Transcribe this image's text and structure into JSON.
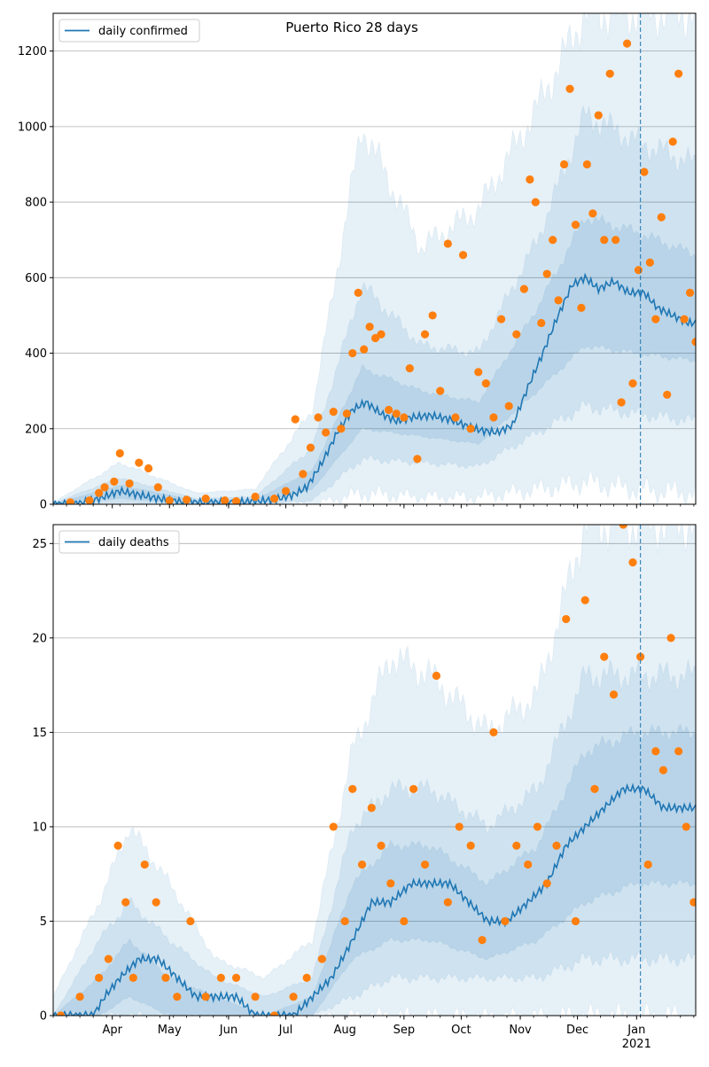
{
  "title": "Puerto Rico 28 days",
  "colors": {
    "line": "#1f77b4",
    "points": "#ff7f0e",
    "band": "#1f77b4",
    "grid": "#b0b0b0"
  },
  "x_axis": {
    "month_labels": [
      {
        "date": "2020-04-01",
        "label": "Apr"
      },
      {
        "date": "2020-05-01",
        "label": "May"
      },
      {
        "date": "2020-06-01",
        "label": "Jun"
      },
      {
        "date": "2020-07-01",
        "label": "Jul"
      },
      {
        "date": "2020-08-01",
        "label": "Aug"
      },
      {
        "date": "2020-09-01",
        "label": "Sep"
      },
      {
        "date": "2020-10-01",
        "label": "Oct"
      },
      {
        "date": "2020-11-01",
        "label": "Nov"
      },
      {
        "date": "2020-12-01",
        "label": "Dec"
      },
      {
        "date": "2021-01-01",
        "label": "Jan"
      }
    ],
    "year_label": "2021",
    "range": [
      "2020-03-01",
      "2021-02-01"
    ]
  },
  "chart_data": [
    {
      "type": "line",
      "panel": "top",
      "title": "Puerto Rico 28 days",
      "legend": {
        "placement": "top-left",
        "entries": [
          "daily confirmed"
        ]
      },
      "vline_date": "2021-01-03",
      "ylim": [
        0,
        1300
      ],
      "yticks": [
        0,
        200,
        400,
        600,
        800,
        1000,
        1200
      ],
      "grid": true,
      "series": [
        {
          "name": "daily confirmed",
          "kind": "line",
          "x": [
            "2020-03-01",
            "2020-03-15",
            "2020-03-25",
            "2020-04-05",
            "2020-04-15",
            "2020-04-25",
            "2020-05-05",
            "2020-05-15",
            "2020-05-25",
            "2020-06-05",
            "2020-06-15",
            "2020-06-25",
            "2020-07-05",
            "2020-07-12",
            "2020-07-20",
            "2020-07-28",
            "2020-08-05",
            "2020-08-12",
            "2020-08-20",
            "2020-08-28",
            "2020-09-05",
            "2020-09-15",
            "2020-09-25",
            "2020-10-05",
            "2020-10-12",
            "2020-10-20",
            "2020-10-28",
            "2020-11-05",
            "2020-11-12",
            "2020-11-20",
            "2020-11-28",
            "2020-12-05",
            "2020-12-12",
            "2020-12-20",
            "2020-12-28",
            "2021-01-05",
            "2021-01-12",
            "2021-01-20",
            "2021-01-28",
            "2021-02-01"
          ],
          "y": [
            0,
            2,
            15,
            35,
            25,
            15,
            8,
            5,
            5,
            6,
            8,
            12,
            25,
            45,
            110,
            190,
            250,
            270,
            240,
            220,
            230,
            235,
            225,
            205,
            195,
            190,
            210,
            310,
            390,
            490,
            580,
            600,
            570,
            590,
            560,
            560,
            520,
            500,
            480,
            480
          ]
        },
        {
          "name": "points",
          "kind": "scatter",
          "x": [
            "2020-03-10",
            "2020-03-20",
            "2020-03-25",
            "2020-03-28",
            "2020-04-02",
            "2020-04-05",
            "2020-04-10",
            "2020-04-15",
            "2020-04-20",
            "2020-04-25",
            "2020-05-01",
            "2020-05-10",
            "2020-05-20",
            "2020-05-30",
            "2020-06-05",
            "2020-06-15",
            "2020-06-25",
            "2020-07-01",
            "2020-07-06",
            "2020-07-10",
            "2020-07-14",
            "2020-07-18",
            "2020-07-22",
            "2020-07-26",
            "2020-07-30",
            "2020-08-02",
            "2020-08-05",
            "2020-08-08",
            "2020-08-11",
            "2020-08-14",
            "2020-08-17",
            "2020-08-20",
            "2020-08-24",
            "2020-08-28",
            "2020-09-01",
            "2020-09-04",
            "2020-09-08",
            "2020-09-12",
            "2020-09-16",
            "2020-09-20",
            "2020-09-24",
            "2020-09-28",
            "2020-10-02",
            "2020-10-06",
            "2020-10-10",
            "2020-10-14",
            "2020-10-18",
            "2020-10-22",
            "2020-10-26",
            "2020-10-30",
            "2020-11-03",
            "2020-11-06",
            "2020-11-09",
            "2020-11-12",
            "2020-11-15",
            "2020-11-18",
            "2020-11-21",
            "2020-11-24",
            "2020-11-27",
            "2020-11-30",
            "2020-12-03",
            "2020-12-06",
            "2020-12-09",
            "2020-12-12",
            "2020-12-15",
            "2020-12-18",
            "2020-12-21",
            "2020-12-24",
            "2020-12-27",
            "2020-12-30",
            "2021-01-02",
            "2021-01-05",
            "2021-01-08",
            "2021-01-11",
            "2021-01-14",
            "2021-01-17",
            "2021-01-20",
            "2021-01-23",
            "2021-01-26",
            "2021-01-29",
            "2021-02-01"
          ],
          "y": [
            5,
            10,
            30,
            45,
            60,
            135,
            55,
            110,
            95,
            45,
            10,
            12,
            15,
            10,
            8,
            20,
            15,
            35,
            225,
            80,
            150,
            230,
            190,
            245,
            200,
            240,
            400,
            560,
            410,
            470,
            440,
            450,
            250,
            240,
            230,
            360,
            120,
            450,
            500,
            300,
            690,
            230,
            660,
            200,
            350,
            320,
            230,
            490,
            260,
            450,
            570,
            860,
            800,
            480,
            610,
            700,
            540,
            900,
            1100,
            740,
            520,
            900,
            770,
            1030,
            700,
            1140,
            700,
            270,
            1220,
            320,
            620,
            880,
            640,
            490,
            760,
            290,
            960,
            1140,
            490,
            560,
            430
          ]
        }
      ],
      "bands": [
        {
          "name": "outer",
          "x": [
            "2020-03-01",
            "2020-04-05",
            "2020-05-15",
            "2020-06-15",
            "2020-07-15",
            "2020-08-10",
            "2020-09-10",
            "2020-10-10",
            "2020-11-10",
            "2020-12-05",
            "2021-01-01",
            "2021-02-01"
          ],
          "lower": [
            0,
            0,
            0,
            0,
            0,
            30,
            20,
            20,
            40,
            60,
            40,
            30
          ],
          "upper": [
            5,
            110,
            30,
            40,
            250,
            1000,
            680,
            780,
            1050,
            1300,
            1300,
            1300
          ]
        },
        {
          "name": "middle",
          "x": [
            "2020-03-01",
            "2020-04-05",
            "2020-05-15",
            "2020-06-15",
            "2020-07-15",
            "2020-08-10",
            "2020-09-10",
            "2020-10-10",
            "2020-11-10",
            "2020-12-05",
            "2021-01-01",
            "2021-02-01"
          ],
          "lower": [
            0,
            5,
            0,
            0,
            10,
            120,
            110,
            100,
            190,
            260,
            240,
            220
          ],
          "upper": [
            3,
            70,
            15,
            20,
            150,
            580,
            420,
            400,
            700,
            1030,
            960,
            900
          ]
        },
        {
          "name": "inner",
          "x": [
            "2020-03-01",
            "2020-04-05",
            "2020-05-15",
            "2020-06-15",
            "2020-07-15",
            "2020-08-10",
            "2020-09-10",
            "2020-10-10",
            "2020-11-10",
            "2020-12-05",
            "2021-01-01",
            "2021-02-01"
          ],
          "lower": [
            0,
            15,
            2,
            2,
            40,
            200,
            180,
            160,
            300,
            420,
            400,
            380
          ],
          "upper": [
            1,
            50,
            10,
            12,
            90,
            360,
            300,
            270,
            520,
            760,
            720,
            660
          ]
        }
      ]
    },
    {
      "type": "line",
      "panel": "bottom",
      "legend": {
        "placement": "top-left",
        "entries": [
          "daily deaths"
        ]
      },
      "vline_date": "2021-01-03",
      "ylim": [
        0,
        26
      ],
      "yticks": [
        0,
        5,
        10,
        15,
        20,
        25
      ],
      "grid": true,
      "series": [
        {
          "name": "daily deaths",
          "kind": "line",
          "x": [
            "2020-03-01",
            "2020-03-22",
            "2020-03-28",
            "2020-04-05",
            "2020-04-15",
            "2020-04-25",
            "2020-05-05",
            "2020-05-15",
            "2020-05-25",
            "2020-06-05",
            "2020-06-15",
            "2020-06-25",
            "2020-07-05",
            "2020-07-15",
            "2020-07-25",
            "2020-08-05",
            "2020-08-15",
            "2020-08-25",
            "2020-09-05",
            "2020-09-15",
            "2020-09-25",
            "2020-10-05",
            "2020-10-15",
            "2020-10-25",
            "2020-11-05",
            "2020-11-15",
            "2020-11-25",
            "2020-12-05",
            "2020-12-15",
            "2020-12-25",
            "2021-01-05",
            "2021-01-15",
            "2021-01-25",
            "2021-02-01"
          ],
          "y": [
            0,
            0,
            1,
            2,
            3,
            3,
            2,
            1,
            1,
            1,
            0,
            0,
            0,
            1,
            2,
            4,
            6,
            6,
            7,
            7,
            7,
            6,
            5,
            5,
            6,
            7,
            9,
            10,
            11,
            12,
            12,
            11,
            11,
            11
          ]
        },
        {
          "name": "points",
          "kind": "scatter",
          "x": [
            "2020-03-05",
            "2020-03-15",
            "2020-03-25",
            "2020-03-30",
            "2020-04-04",
            "2020-04-08",
            "2020-04-12",
            "2020-04-18",
            "2020-04-24",
            "2020-04-29",
            "2020-05-05",
            "2020-05-12",
            "2020-05-20",
            "2020-05-28",
            "2020-06-05",
            "2020-06-15",
            "2020-06-25",
            "2020-07-05",
            "2020-07-12",
            "2020-07-20",
            "2020-07-26",
            "2020-08-01",
            "2020-08-05",
            "2020-08-10",
            "2020-08-15",
            "2020-08-20",
            "2020-08-25",
            "2020-09-01",
            "2020-09-06",
            "2020-09-12",
            "2020-09-18",
            "2020-09-24",
            "2020-09-30",
            "2020-10-06",
            "2020-10-12",
            "2020-10-18",
            "2020-10-24",
            "2020-10-30",
            "2020-11-05",
            "2020-11-10",
            "2020-11-15",
            "2020-11-20",
            "2020-11-25",
            "2020-11-30",
            "2020-12-05",
            "2020-12-10",
            "2020-12-15",
            "2020-12-20",
            "2020-12-25",
            "2020-12-30",
            "2021-01-03",
            "2021-01-07",
            "2021-01-11",
            "2021-01-15",
            "2021-01-19",
            "2021-01-23",
            "2021-01-27",
            "2021-01-31"
          ],
          "y": [
            0,
            1,
            2,
            3,
            9,
            6,
            2,
            8,
            6,
            2,
            1,
            5,
            1,
            2,
            2,
            1,
            0,
            1,
            2,
            3,
            10,
            5,
            12,
            8,
            11,
            9,
            7,
            5,
            12,
            8,
            18,
            6,
            10,
            9,
            4,
            15,
            5,
            9,
            8,
            10,
            7,
            9,
            21,
            5,
            22,
            12,
            19,
            17,
            26,
            24,
            19,
            8,
            14,
            13,
            20,
            14,
            10,
            6
          ]
        }
      ],
      "bands": [
        {
          "name": "outer",
          "x": [
            "2020-03-01",
            "2020-03-25",
            "2020-04-10",
            "2020-05-01",
            "2020-05-25",
            "2020-06-20",
            "2020-07-15",
            "2020-08-05",
            "2020-08-25",
            "2020-09-15",
            "2020-10-15",
            "2020-11-10",
            "2020-12-05",
            "2021-01-01",
            "2021-02-01"
          ],
          "lower": [
            0,
            0,
            0,
            0,
            0,
            0,
            0,
            0,
            0,
            0,
            0,
            0,
            0,
            0,
            0
          ],
          "upper": [
            1,
            6,
            10,
            7,
            3,
            2,
            4,
            14,
            19,
            18,
            15,
            17,
            26,
            26,
            26
          ]
        },
        {
          "name": "middle",
          "x": [
            "2020-03-01",
            "2020-03-25",
            "2020-04-10",
            "2020-05-01",
            "2020-05-25",
            "2020-06-20",
            "2020-07-15",
            "2020-08-05",
            "2020-08-25",
            "2020-09-15",
            "2020-10-15",
            "2020-11-10",
            "2020-12-05",
            "2021-01-01",
            "2021-02-01"
          ],
          "lower": [
            0,
            0,
            0,
            0,
            0,
            0,
            0,
            1,
            2,
            2,
            2,
            2,
            3,
            3,
            3
          ],
          "upper": [
            0,
            4,
            6,
            4,
            2,
            1,
            2,
            10,
            12,
            12,
            10,
            12,
            18,
            18,
            18
          ]
        },
        {
          "name": "inner",
          "x": [
            "2020-03-01",
            "2020-03-25",
            "2020-04-10",
            "2020-05-01",
            "2020-05-25",
            "2020-06-20",
            "2020-07-15",
            "2020-08-05",
            "2020-08-25",
            "2020-09-15",
            "2020-10-15",
            "2020-11-10",
            "2020-12-05",
            "2021-01-01",
            "2021-02-01"
          ],
          "lower": [
            0,
            0,
            1,
            0,
            0,
            0,
            0,
            3,
            4,
            4,
            3,
            4,
            6,
            7,
            7
          ],
          "upper": [
            0,
            2,
            4,
            2,
            1,
            0,
            1,
            7,
            9,
            9,
            7,
            9,
            14,
            15,
            15
          ]
        }
      ]
    }
  ]
}
